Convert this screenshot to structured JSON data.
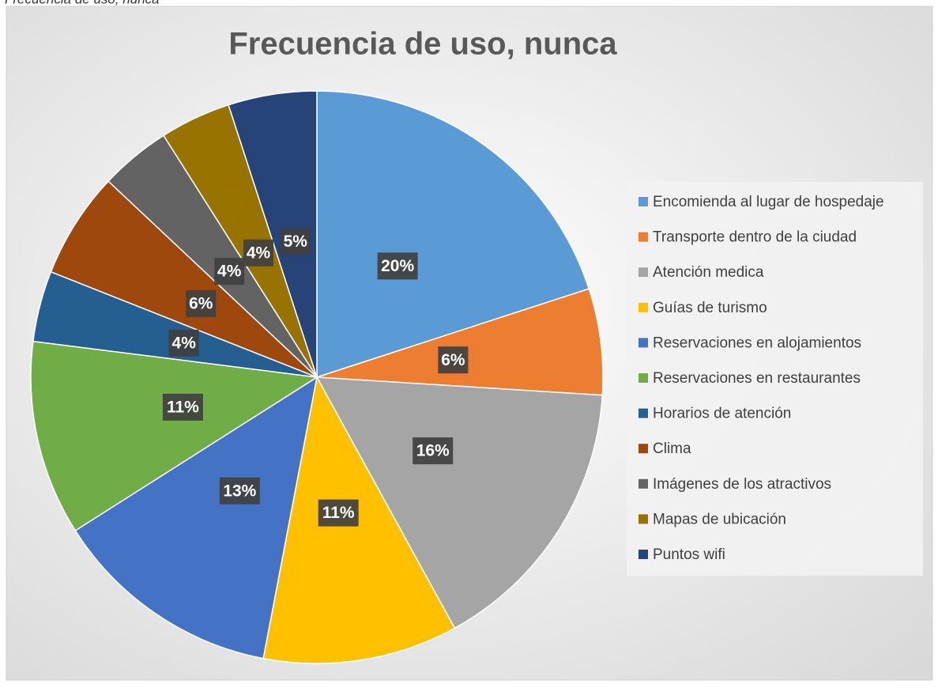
{
  "caption": "Frecuencia de uso, nunca",
  "chart_data": {
    "type": "pie",
    "title": "Frecuencia de uso, nunca",
    "categories": [
      "Encomienda al lugar de hospedaje",
      "Transporte dentro de la ciudad",
      "Atención medica",
      "Guías de turismo",
      "Reservaciones en alojamientos",
      "Reservaciones en restaurantes",
      "Horarios de atención",
      "Clima",
      "Imágenes de los atractivos",
      "Mapas de ubicación",
      "Puntos wifi"
    ],
    "values": [
      20,
      6,
      16,
      11,
      13,
      11,
      4,
      6,
      4,
      4,
      5
    ],
    "value_labels": [
      "20%",
      "6%",
      "16%",
      "11%",
      "13%",
      "11%",
      "4%",
      "6%",
      "4%",
      "4%",
      "5%"
    ],
    "colors": [
      "#5b9bd5",
      "#ed7d31",
      "#a5a5a5",
      "#ffc000",
      "#4472c4",
      "#70ad47",
      "#255e91",
      "#9e480e",
      "#636363",
      "#997300",
      "#264478"
    ],
    "legend": "right"
  }
}
